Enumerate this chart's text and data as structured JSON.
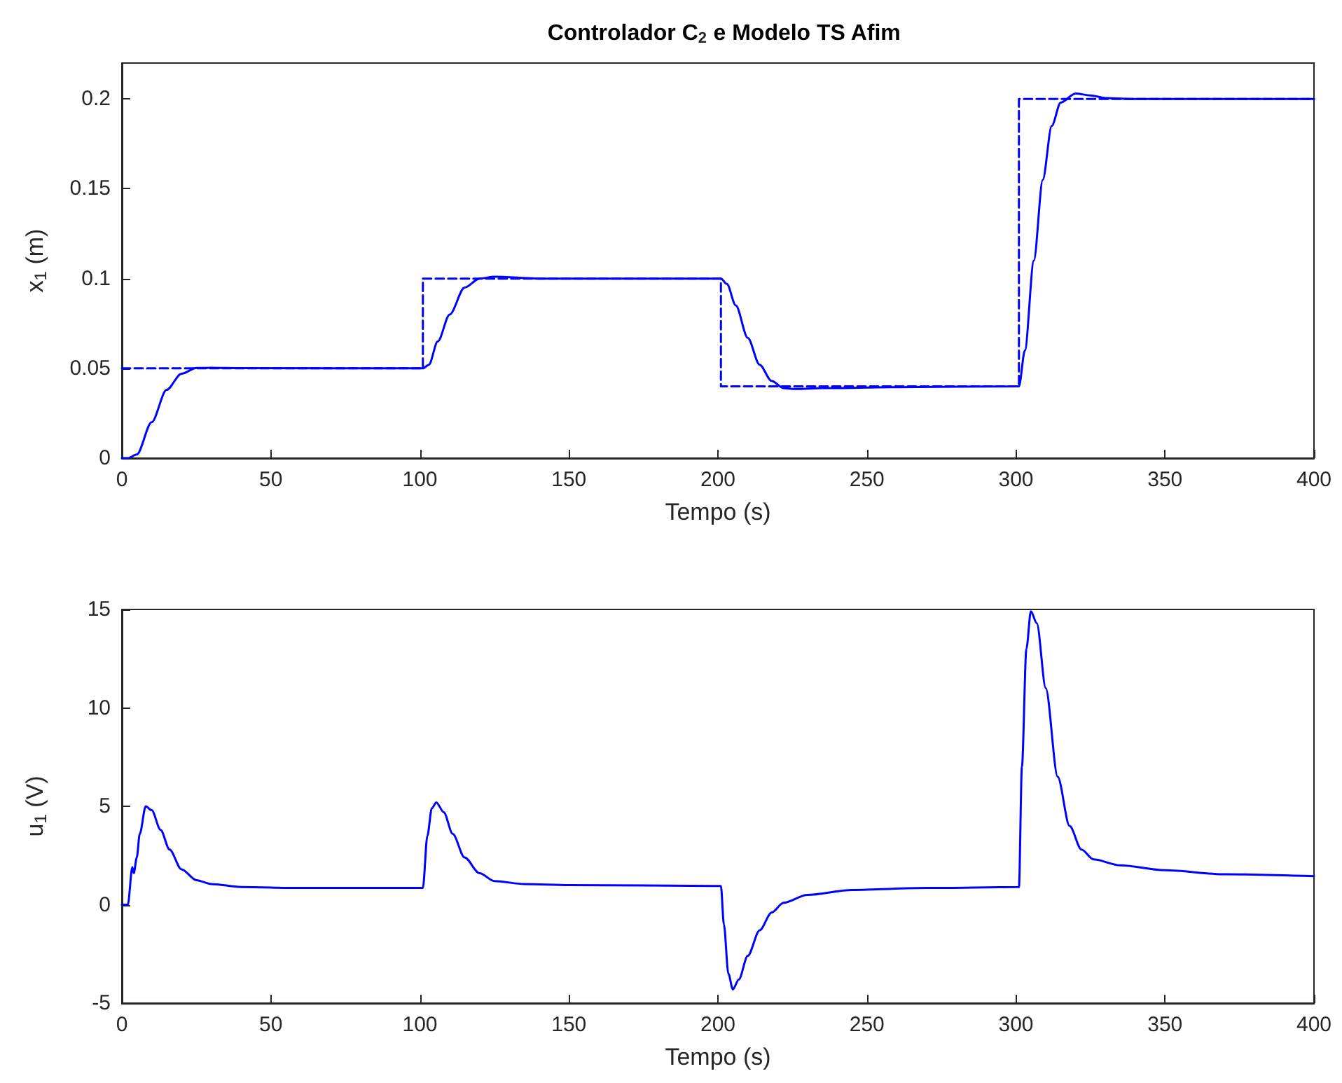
{
  "chart_data": [
    {
      "type": "line",
      "title": "Controlador C$_{2}$ e Modelo TS Afim",
      "xlabel": "Tempo (s)",
      "ylabel": "x$_{1}$ (m)",
      "xlim": [
        0,
        400
      ],
      "xticks": [
        0,
        50,
        100,
        150,
        200,
        250,
        300,
        350,
        400
      ],
      "ylim": [
        0,
        0.22
      ],
      "yticks": [
        0,
        0.05,
        0.1,
        0.15,
        0.2
      ],
      "grid": false,
      "series": [
        {
          "color": "#0000ff",
          "line_style": "dashed",
          "x": [
            0,
            101,
            101,
            201,
            201,
            301,
            301,
            400
          ],
          "values": [
            0.05,
            0.05,
            0.1,
            0.1,
            0.04,
            0.04,
            0.2,
            0.2
          ]
        },
        {
          "color": "#0000ff",
          "line_style": "solid",
          "x": [
            0,
            2,
            5,
            10,
            15,
            20,
            25,
            30,
            40,
            101,
            103,
            106,
            110,
            115,
            120,
            125,
            140,
            201,
            203,
            206,
            210,
            214,
            218,
            222,
            226,
            235,
            260,
            301,
            303,
            306,
            309,
            312,
            315,
            320,
            325,
            330,
            340,
            400
          ],
          "values": [
            0,
            0,
            0.002,
            0.02,
            0.038,
            0.047,
            0.0502,
            0.0503,
            0.0501,
            0.05,
            0.052,
            0.065,
            0.08,
            0.095,
            0.1,
            0.101,
            0.1,
            0.1,
            0.097,
            0.085,
            0.067,
            0.052,
            0.043,
            0.039,
            0.0385,
            0.039,
            0.0395,
            0.04,
            0.06,
            0.11,
            0.155,
            0.185,
            0.198,
            0.203,
            0.202,
            0.2005,
            0.2,
            0.2
          ]
        }
      ]
    },
    {
      "type": "line",
      "xlabel": "Tempo (s)",
      "ylabel": "u$_{1}$ (V)",
      "xlim": [
        0,
        400
      ],
      "xticks": [
        0,
        50,
        100,
        150,
        200,
        250,
        300,
        350,
        400
      ],
      "ylim": [
        -5,
        15
      ],
      "yticks": [
        -5,
        0,
        5,
        10,
        15
      ],
      "grid": false,
      "series": [
        {
          "color": "#0000ff",
          "line_style": "solid",
          "x": [
            0,
            2,
            3.5,
            4,
            5,
            6,
            8,
            10,
            13,
            16,
            20,
            25,
            30,
            40,
            60,
            101,
            102.5,
            104,
            105.5,
            108,
            111,
            115,
            120,
            125,
            135,
            150,
            201,
            202,
            203.5,
            205,
            207,
            210,
            214,
            218,
            222,
            230,
            245,
            270,
            301,
            302,
            303.5,
            305,
            307,
            310,
            314,
            318,
            322,
            326,
            335,
            350,
            370,
            400
          ],
          "values": [
            0,
            0,
            1.9,
            1.6,
            2.4,
            3.6,
            5.0,
            4.8,
            3.8,
            2.8,
            1.8,
            1.25,
            1.05,
            0.9,
            0.85,
            0.85,
            3.5,
            4.9,
            5.2,
            4.7,
            3.6,
            2.4,
            1.6,
            1.2,
            1.05,
            1.0,
            0.95,
            -1,
            -3.5,
            -4.3,
            -3.8,
            -2.6,
            -1.3,
            -0.4,
            0.1,
            0.5,
            0.75,
            0.85,
            0.9,
            7,
            13,
            14.9,
            14.3,
            11,
            6.5,
            4,
            2.8,
            2.3,
            2.0,
            1.75,
            1.55,
            1.45
          ]
        }
      ]
    }
  ]
}
